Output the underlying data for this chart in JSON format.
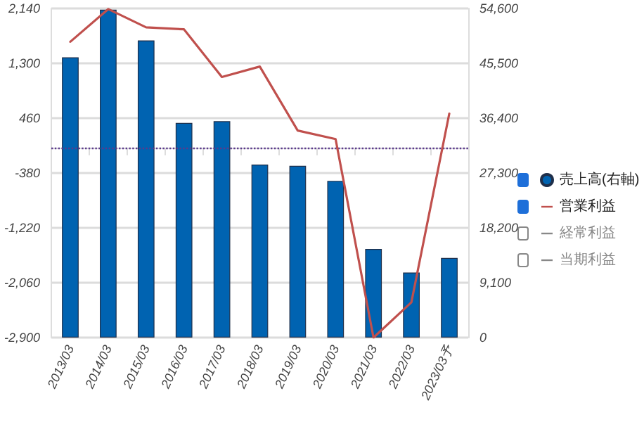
{
  "chart_data": {
    "type": "bar",
    "categories": [
      "2013/03",
      "2014/03",
      "2015/03",
      "2016/03",
      "2017/03",
      "2018/03",
      "2019/03",
      "2020/03",
      "2021/03",
      "2022/03",
      "2023/03予"
    ],
    "series": [
      {
        "name": "売上高(右軸)",
        "axis": "y2",
        "color": "#0063b1",
        "values": [
          46500,
          54400,
          49300,
          35600,
          35900,
          28700,
          28500,
          26000,
          14700,
          10800,
          13200
        ]
      },
      {
        "name": "営業利益",
        "type": "line",
        "color": "#c0504d",
        "values": [
          1630,
          2130,
          1850,
          1820,
          1090,
          1250,
          270,
          140,
          -2900,
          -2360,
          530
        ]
      },
      {
        "name": "経常利益",
        "type": "line",
        "color": "#888888",
        "values": [
          null,
          null,
          null,
          null,
          null,
          null,
          null,
          null,
          null,
          null,
          null
        ]
      },
      {
        "name": "当期利益",
        "type": "line",
        "color": "#888888",
        "values": [
          null,
          null,
          null,
          null,
          null,
          null,
          null,
          null,
          null,
          null,
          null
        ]
      }
    ],
    "ylim": [
      -2900,
      2140
    ],
    "yticks": [
      {
        "value": -2900,
        "label": "-2,900"
      },
      {
        "value": -2060,
        "label": "-2,060"
      },
      {
        "value": -1220,
        "label": "-1,220"
      },
      -380,
      460,
      {
        "value": 1300,
        "label": "1,300"
      },
      {
        "value": 2140,
        "label": "2,140"
      }
    ],
    "y2lim": [
      0,
      54600
    ],
    "y2ticks": [
      0,
      {
        "value": 9100,
        "label": "9,100"
      },
      {
        "value": 18200,
        "label": "18,200"
      },
      {
        "value": 27300,
        "label": "27,300"
      },
      {
        "value": 36400,
        "label": "36,400"
      },
      {
        "value": 45500,
        "label": "45,500"
      },
      {
        "value": 54600,
        "label": "54,600"
      }
    ],
    "ref_lines": [
      {
        "axis": "y",
        "value": 0,
        "color": "#5b3a8c",
        "line_style": "dotted"
      }
    ],
    "grid": "y",
    "legend": "right",
    "marker": "none",
    "line_style": "solid"
  }
}
